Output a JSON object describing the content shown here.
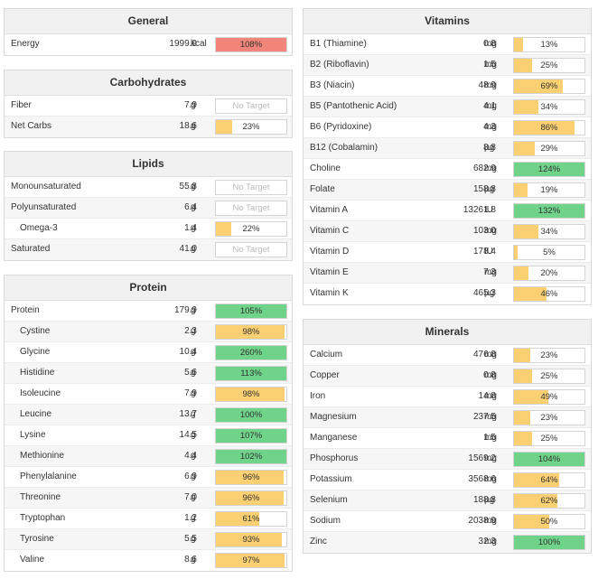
{
  "colors": {
    "under": "#fbd073",
    "ok": "#6fd389",
    "over": "#f18579"
  },
  "general": {
    "title": "General",
    "rows": [
      {
        "name": "Energy",
        "amount": "1999.9",
        "unit": "kcal",
        "pct": 108,
        "label": "108%",
        "status": "over"
      }
    ]
  },
  "carbohydrates": {
    "title": "Carbohydrates",
    "rows": [
      {
        "name": "Fiber",
        "amount": "7.9",
        "unit": "g",
        "pct": null,
        "label": "No Target",
        "status": "none"
      },
      {
        "name": "Net Carbs",
        "amount": "18.6",
        "unit": "g",
        "pct": 23,
        "label": "23%",
        "status": "under"
      }
    ]
  },
  "lipids": {
    "title": "Lipids",
    "rows": [
      {
        "name": "Monounsaturated",
        "amount": "55.8",
        "unit": "g",
        "pct": null,
        "label": "No Target",
        "status": "none"
      },
      {
        "name": "Polyunsaturated",
        "amount": "6.4",
        "unit": "g",
        "pct": null,
        "label": "No Target",
        "status": "none"
      },
      {
        "name": "Omega-3",
        "amount": "1.4",
        "unit": "g",
        "pct": 22,
        "label": "22%",
        "status": "under",
        "indent": true
      },
      {
        "name": "Saturated",
        "amount": "41.0",
        "unit": "g",
        "pct": null,
        "label": "No Target",
        "status": "none"
      }
    ]
  },
  "protein": {
    "title": "Protein",
    "rows": [
      {
        "name": "Protein",
        "amount": "179.9",
        "unit": "g",
        "pct": 105,
        "label": "105%",
        "status": "ok"
      },
      {
        "name": "Cystine",
        "amount": "2.3",
        "unit": "g",
        "pct": 98,
        "label": "98%",
        "status": "under",
        "indent": true
      },
      {
        "name": "Glycine",
        "amount": "10.4",
        "unit": "g",
        "pct": 260,
        "label": "260%",
        "status": "ok",
        "indent": true
      },
      {
        "name": "Histidine",
        "amount": "5.6",
        "unit": "g",
        "pct": 113,
        "label": "113%",
        "status": "ok",
        "indent": true
      },
      {
        "name": "Isoleucine",
        "amount": "7.9",
        "unit": "g",
        "pct": 98,
        "label": "98%",
        "status": "under",
        "indent": true
      },
      {
        "name": "Leucine",
        "amount": "13.7",
        "unit": "g",
        "pct": 100,
        "label": "100%",
        "status": "ok",
        "indent": true
      },
      {
        "name": "Lysine",
        "amount": "14.5",
        "unit": "g",
        "pct": 107,
        "label": "107%",
        "status": "ok",
        "indent": true
      },
      {
        "name": "Methionine",
        "amount": "4.4",
        "unit": "g",
        "pct": 102,
        "label": "102%",
        "status": "ok",
        "indent": true
      },
      {
        "name": "Phenylalanine",
        "amount": "6.9",
        "unit": "g",
        "pct": 96,
        "label": "96%",
        "status": "under",
        "indent": true
      },
      {
        "name": "Threonine",
        "amount": "7.0",
        "unit": "g",
        "pct": 96,
        "label": "96%",
        "status": "under",
        "indent": true
      },
      {
        "name": "Tryptophan",
        "amount": "1.2",
        "unit": "g",
        "pct": 61,
        "label": "61%",
        "status": "under",
        "indent": true
      },
      {
        "name": "Tyrosine",
        "amount": "5.5",
        "unit": "g",
        "pct": 93,
        "label": "93%",
        "status": "under",
        "indent": true
      },
      {
        "name": "Valine",
        "amount": "8.6",
        "unit": "g",
        "pct": 97,
        "label": "97%",
        "status": "under",
        "indent": true
      }
    ]
  },
  "vitamins": {
    "title": "Vitamins",
    "rows": [
      {
        "name": "B1 (Thiamine)",
        "amount": "0.8",
        "unit": "mg",
        "pct": 13,
        "label": "13%",
        "status": "under"
      },
      {
        "name": "B2 (Riboflavin)",
        "amount": "1.5",
        "unit": "mg",
        "pct": 25,
        "label": "25%",
        "status": "under"
      },
      {
        "name": "B3 (Niacin)",
        "amount": "48.9",
        "unit": "mg",
        "pct": 69,
        "label": "69%",
        "status": "under"
      },
      {
        "name": "B5 (Pantothenic Acid)",
        "amount": "4.1",
        "unit": "mg",
        "pct": 34,
        "label": "34%",
        "status": "under"
      },
      {
        "name": "B6 (Pyridoxine)",
        "amount": "4.3",
        "unit": "mg",
        "pct": 86,
        "label": "86%",
        "status": "under"
      },
      {
        "name": "B12 (Cobalamin)",
        "amount": "8.8",
        "unit": "µg",
        "pct": 29,
        "label": "29%",
        "status": "under"
      },
      {
        "name": "Choline",
        "amount": "682.9",
        "unit": "mg",
        "pct": 124,
        "label": "124%",
        "status": "ok"
      },
      {
        "name": "Folate",
        "amount": "158.8",
        "unit": "µg",
        "pct": 19,
        "label": "19%",
        "status": "under"
      },
      {
        "name": "Vitamin A",
        "amount": "13261.8",
        "unit": "IU",
        "pct": 132,
        "label": "132%",
        "status": "ok"
      },
      {
        "name": "Vitamin C",
        "amount": "103.0",
        "unit": "mg",
        "pct": 34,
        "label": "34%",
        "status": "under"
      },
      {
        "name": "Vitamin D",
        "amount": "178.4",
        "unit": "IU",
        "pct": 5,
        "label": "5%",
        "status": "under"
      },
      {
        "name": "Vitamin E",
        "amount": "7.3",
        "unit": "mg",
        "pct": 20,
        "label": "20%",
        "status": "under"
      },
      {
        "name": "Vitamin K",
        "amount": "465.3",
        "unit": "µg",
        "pct": 46,
        "label": "46%",
        "status": "under"
      }
    ]
  },
  "minerals": {
    "title": "Minerals",
    "rows": [
      {
        "name": "Calcium",
        "amount": "476.8",
        "unit": "mg",
        "pct": 23,
        "label": "23%",
        "status": "under"
      },
      {
        "name": "Copper",
        "amount": "0.8",
        "unit": "mg",
        "pct": 25,
        "label": "25%",
        "status": "under"
      },
      {
        "name": "Iron",
        "amount": "14.8",
        "unit": "mg",
        "pct": 49,
        "label": "49%",
        "status": "under"
      },
      {
        "name": "Magnesium",
        "amount": "237.5",
        "unit": "mg",
        "pct": 23,
        "label": "23%",
        "status": "under"
      },
      {
        "name": "Manganese",
        "amount": "1.5",
        "unit": "mg",
        "pct": 25,
        "label": "25%",
        "status": "under"
      },
      {
        "name": "Phosphorus",
        "amount": "1569.2",
        "unit": "mg",
        "pct": 104,
        "label": "104%",
        "status": "ok"
      },
      {
        "name": "Potassium",
        "amount": "3568.6",
        "unit": "mg",
        "pct": 64,
        "label": "64%",
        "status": "under"
      },
      {
        "name": "Selenium",
        "amount": "188.8",
        "unit": "µg",
        "pct": 62,
        "label": "62%",
        "status": "under"
      },
      {
        "name": "Sodium",
        "amount": "2038.9",
        "unit": "mg",
        "pct": 50,
        "label": "50%",
        "status": "under"
      },
      {
        "name": "Zinc",
        "amount": "32.3",
        "unit": "mg",
        "pct": 100,
        "label": "100%",
        "status": "ok"
      }
    ]
  }
}
